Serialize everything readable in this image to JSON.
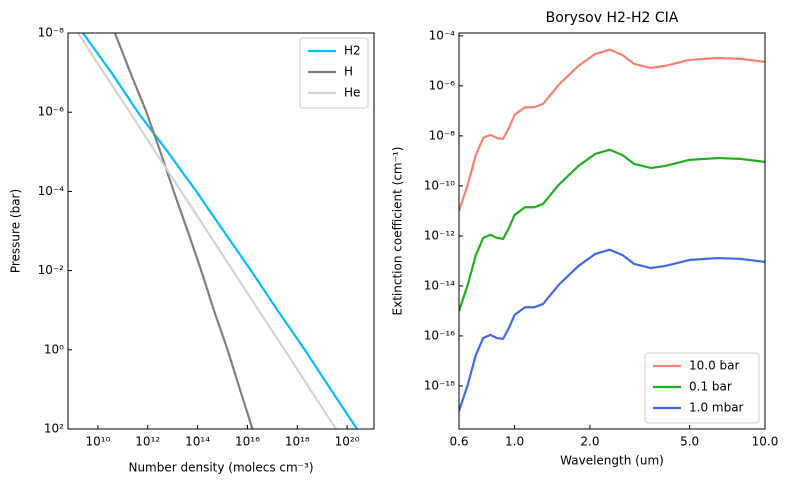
{
  "chart_data": [
    {
      "type": "line",
      "xscale": "log",
      "yscale": "log",
      "xlabel": "Number density (molecs cm⁻³)",
      "ylabel": "Pressure (bar)",
      "xlim": [
        630000000.0,
        1.2e+21
      ],
      "ylim": [
        100,
        1e-08
      ],
      "xticks": [
        {
          "value": 10000000000.0,
          "label": "10¹⁰"
        },
        {
          "value": 1000000000000.0,
          "label": "10¹²"
        },
        {
          "value": 100000000000000.0,
          "label": "10¹⁴"
        },
        {
          "value": 1e+16,
          "label": "10¹⁶"
        },
        {
          "value": 1e+18,
          "label": "10¹⁸"
        },
        {
          "value": 1e+20,
          "label": "10²⁰"
        }
      ],
      "yticks": [
        {
          "value": 1e-08,
          "label": "10⁻⁸"
        },
        {
          "value": 1e-06,
          "label": "10⁻⁶"
        },
        {
          "value": 0.0001,
          "label": "10⁻⁴"
        },
        {
          "value": 0.01,
          "label": "10⁻²"
        },
        {
          "value": 1,
          "label": "10⁰"
        },
        {
          "value": 100,
          "label": "10²"
        }
      ],
      "legend": "upper right",
      "series": [
        {
          "name": "H2",
          "color": "#00bfff",
          "x": [
            2500000000.0,
            35000000000.0,
            400000000000.0,
            6300000000000.0,
            89000000000000.0,
            1100000000000000.0,
            1.4e+16,
            1.6e+17,
            2e+18,
            2.2e+19,
            2.5e+20
          ],
          "values": [
            1e-08,
            1e-07,
            1e-06,
            1e-05,
            0.0001,
            0.001,
            0.01,
            0.1,
            1,
            10,
            100
          ]
        },
        {
          "name": "H",
          "color": "#808080",
          "x": [
            48000000000.0,
            200000000000.0,
            890000000000.0,
            3200000000000.0,
            11000000000000.0,
            40000000000000.0,
            140000000000000.0,
            450000000000000.0,
            1600000000000000.0,
            5000000000000000.0,
            1.6e+16
          ],
          "values": [
            1e-08,
            1e-07,
            1e-06,
            1e-05,
            0.0001,
            0.001,
            0.01,
            0.1,
            1,
            10,
            100
          ]
        },
        {
          "name": "He",
          "color": "#d3d3d3",
          "x": [
            1600000000.0,
            17000000000.0,
            190000000000.0,
            2000000000000.0,
            22000000000000.0,
            240000000000000.0,
            2600000000000000.0,
            2.8e+16,
            3.1e+17,
            3.3e+18,
            3.6e+19
          ],
          "values": [
            1e-08,
            1e-07,
            1e-06,
            1e-05,
            0.0001,
            0.001,
            0.01,
            0.1,
            1,
            10,
            100
          ]
        }
      ]
    },
    {
      "type": "line",
      "xscale": "log",
      "yscale": "log",
      "title": "Borysov H2-H2 CIA",
      "xlabel": "Wavelength (um)",
      "ylabel": "Extinction coefficient (cm⁻¹)",
      "xlim": [
        0.6,
        10
      ],
      "ylim": [
        1.9e-20,
        0.00013
      ],
      "xticks": [
        0.6,
        {
          "value": 1,
          "label": "1.0"
        },
        {
          "value": 2,
          "label": "2.0"
        },
        {
          "value": 5,
          "label": "5.0"
        },
        {
          "value": 10,
          "label": "10.0"
        }
      ],
      "yticks": [
        {
          "value": 0.0001,
          "label": "10⁻⁴"
        },
        {
          "value": 1e-06,
          "label": "10⁻⁶"
        },
        {
          "value": 1e-08,
          "label": "10⁻⁸"
        },
        {
          "value": 1e-10,
          "label": "10⁻¹⁰"
        },
        {
          "value": 1e-12,
          "label": "10⁻¹²"
        },
        {
          "value": 1e-14,
          "label": "10⁻¹⁴"
        },
        {
          "value": 1e-16,
          "label": "10⁻¹⁶"
        },
        {
          "value": 1e-18,
          "label": "10⁻¹⁸"
        }
      ],
      "legend": "lower right",
      "x": [
        0.6,
        0.65,
        0.7,
        0.75,
        0.8,
        0.85,
        0.9,
        0.95,
        1.0,
        1.1,
        1.2,
        1.3,
        1.5,
        1.8,
        2.1,
        2.4,
        2.7,
        3.0,
        3.5,
        4.0,
        5.0,
        6.5,
        8.0,
        10
      ],
      "series": [
        {
          "name": "10.0 bar",
          "color": "#fa8072",
          "values": [
            1e-11,
            1.1e-10,
            1.7e-09,
            8.3e-09,
            1.1e-08,
            8.3e-09,
            7.6e-09,
            2.1e-08,
            6.9e-08,
            1.4e-07,
            1.4e-07,
            1.9e-07,
            1.1e-06,
            6.3e-06,
            1.9e-05,
            2.8e-05,
            1.7e-05,
            7.6e-06,
            5.2e-06,
            6.3e-06,
            1.1e-05,
            1.3e-05,
            1.2e-05,
            9.1e-06
          ]
        },
        {
          "name": "0.1 bar",
          "color": "#1fae1f",
          "values": [
            1e-15,
            1.1e-14,
            1.7e-13,
            8.3e-13,
            1.1e-12,
            8.3e-13,
            7.6e-13,
            2.1e-12,
            6.9e-12,
            1.4e-11,
            1.4e-11,
            1.9e-11,
            1.1e-10,
            6.3e-10,
            1.9e-09,
            2.8e-09,
            1.7e-09,
            7.6e-10,
            5.2e-10,
            6.3e-10,
            1.1e-09,
            1.3e-09,
            1.2e-09,
            9.1e-10
          ]
        },
        {
          "name": "1.0 mbar",
          "color": "#4169e1",
          "values": [
            1e-19,
            1.1e-18,
            1.7e-17,
            8.3e-17,
            1.1e-16,
            8.3e-17,
            7.6e-17,
            2.1e-16,
            6.9e-16,
            1.4e-15,
            1.4e-15,
            1.9e-15,
            1.1e-14,
            6.3e-14,
            1.9e-13,
            2.8e-13,
            1.7e-13,
            7.6e-14,
            5.2e-14,
            6.3e-14,
            1.1e-13,
            1.3e-13,
            1.2e-13,
            9.1e-14
          ]
        }
      ]
    }
  ]
}
